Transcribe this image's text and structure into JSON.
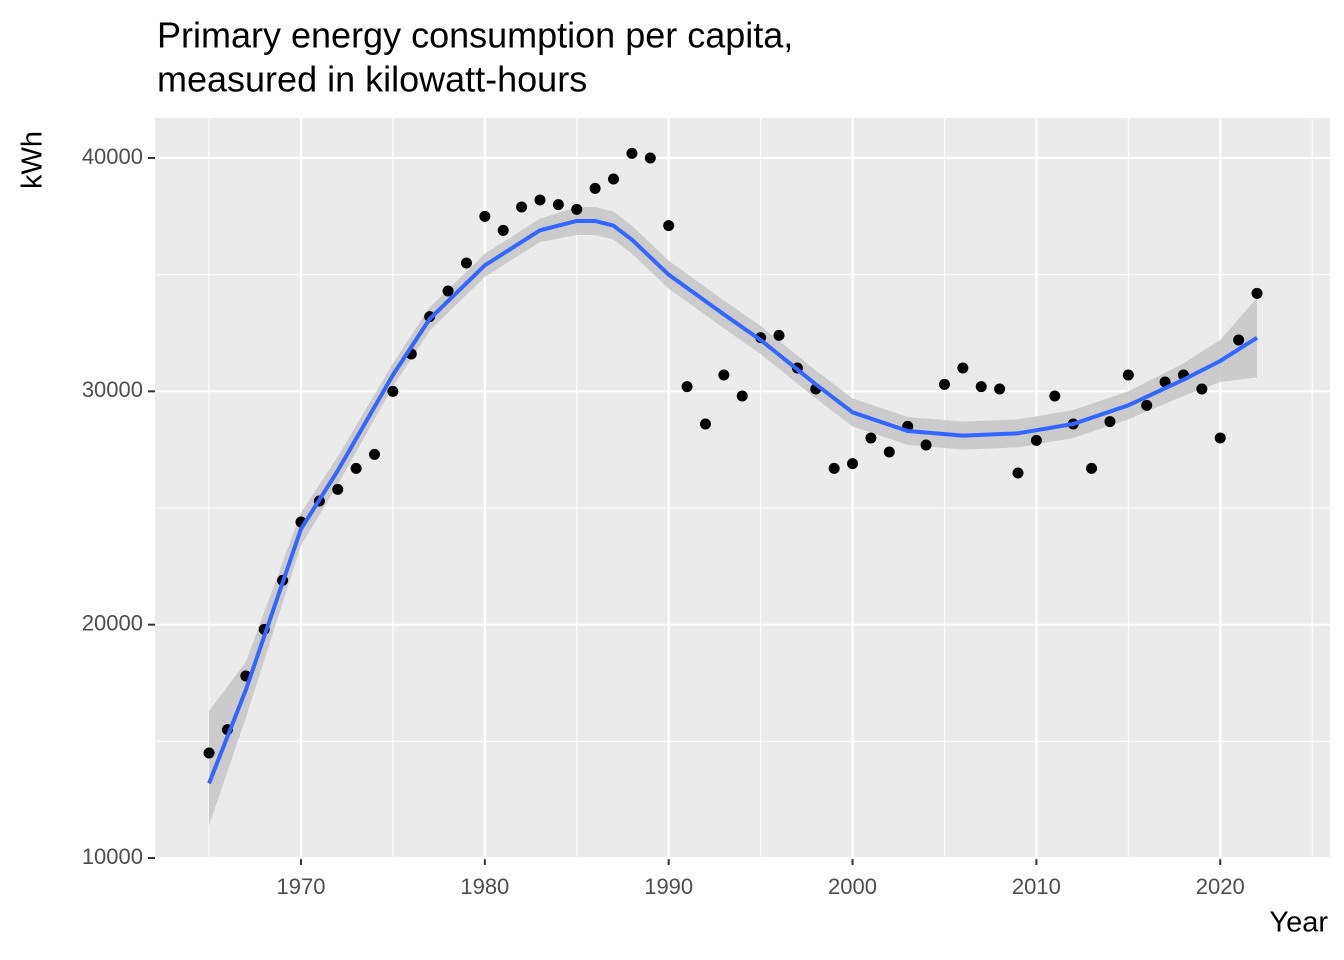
{
  "chart_data": {
    "type": "scatter-smooth",
    "title": [
      "Primary energy consumption per capita,",
      "measured in kilowatt-hours"
    ],
    "x_label": "Year",
    "y_label": "kWh",
    "xlim": [
      1962.06,
      2025.97
    ],
    "ylim": [
      10000,
      41714
    ],
    "xticks": [
      1970,
      1980,
      1990,
      2000,
      2010,
      2020
    ],
    "yticks": [
      10000,
      20000,
      30000,
      40000
    ],
    "xminorticks": [
      1965,
      1975,
      1985,
      1995,
      2005,
      2015,
      2025
    ],
    "yminorticks": [
      15000,
      25000,
      35000
    ],
    "grid": true,
    "point_color": "#000000",
    "x": [
      1965,
      1966,
      1967,
      1968,
      1969,
      1970,
      1971,
      1972,
      1973,
      1974,
      1975,
      1976,
      1977,
      1978,
      1979,
      1980,
      1981,
      1982,
      1983,
      1984,
      1985,
      1986,
      1987,
      1988,
      1989,
      1990,
      1991,
      1992,
      1993,
      1994,
      1995,
      1996,
      1997,
      1998,
      1999,
      2000,
      2001,
      2002,
      2003,
      2004,
      2005,
      2006,
      2007,
      2008,
      2009,
      2010,
      2011,
      2012,
      2013,
      2014,
      2015,
      2016,
      2017,
      2018,
      2019,
      2020,
      2021,
      2022
    ],
    "values": [
      14500,
      15500,
      17800,
      19800,
      21900,
      24400,
      25300,
      25800,
      26700,
      27300,
      30000,
      31600,
      33200,
      34300,
      35500,
      37500,
      36900,
      37900,
      38200,
      38000,
      37800,
      38700,
      39100,
      40200,
      40000,
      37100,
      30200,
      28600,
      30700,
      29800,
      32300,
      32400,
      31000,
      30100,
      26700,
      26900,
      28000,
      27400,
      28500,
      27700,
      30300,
      31000,
      30200,
      30100,
      26500,
      27900,
      29800,
      28600,
      26700,
      28700,
      30700,
      29400,
      30400,
      30700,
      30100,
      28000,
      32200,
      34200
    ],
    "smooth": {
      "color": "#3366ff",
      "band_color": "#c8c8c8",
      "x": [
        1965,
        1967,
        1970,
        1972,
        1975,
        1977,
        1980,
        1983,
        1985,
        1986,
        1987,
        1988,
        1990,
        1993,
        1995,
        1998,
        2000,
        2003,
        2006,
        2009,
        2012,
        2015,
        2018,
        2020,
        2022
      ],
      "values": [
        13200,
        17200,
        24100,
        26600,
        30700,
        33100,
        35400,
        36900,
        37300,
        37300,
        37100,
        36500,
        35000,
        33300,
        32200,
        30300,
        29100,
        28300,
        28100,
        28200,
        28600,
        29400,
        30500,
        31300,
        32300
      ],
      "lower": [
        11400,
        16000,
        23400,
        26000,
        30200,
        32600,
        34900,
        36400,
        36700,
        36700,
        36500,
        35900,
        34400,
        32700,
        31600,
        29700,
        28500,
        27700,
        27500,
        27600,
        28000,
        28800,
        29800,
        30400,
        30600
      ],
      "upper": [
        16300,
        18400,
        24800,
        27200,
        31200,
        33600,
        35900,
        37400,
        37900,
        37900,
        37700,
        37100,
        35600,
        33900,
        32800,
        30900,
        29700,
        28900,
        28700,
        28800,
        29200,
        30000,
        31200,
        32200,
        34000
      ]
    }
  }
}
